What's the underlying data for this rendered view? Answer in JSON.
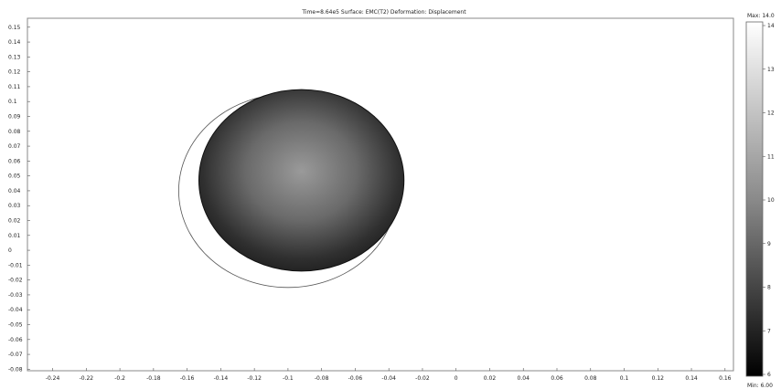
{
  "title": "Time=8.64e5   Surface: EMC(T2)   Deformation: Displacement",
  "chart_data": {
    "type": "heatmap",
    "xlim": [
      -0.255,
      0.165
    ],
    "ylim": [
      -0.081,
      0.156
    ],
    "x_ticks": [
      "-0.24",
      "-0.22",
      "-0.2",
      "-0.18",
      "-0.16",
      "-0.14",
      "-0.12",
      "-0.1",
      "-0.08",
      "-0.06",
      "-0.04",
      "-0.02",
      "0",
      "0.02",
      "0.04",
      "0.06",
      "0.08",
      "0.1",
      "0.12",
      "0.14",
      "0.16"
    ],
    "x_tick_values": [
      -0.24,
      -0.22,
      -0.2,
      -0.18,
      -0.16,
      -0.14,
      -0.12,
      -0.1,
      -0.08,
      -0.06,
      -0.04,
      -0.02,
      0,
      0.02,
      0.04,
      0.06,
      0.08,
      0.1,
      0.12,
      0.14,
      0.16
    ],
    "y_ticks": [
      "0.15",
      "0.14",
      "0.13",
      "0.12",
      "0.11",
      "0.1",
      "0.09",
      "0.08",
      "0.07",
      "0.06",
      "0.05",
      "0.04",
      "0.03",
      "0.02",
      "0.01",
      "0",
      "-0.01",
      "-0.02",
      "-0.03",
      "-0.04",
      "-0.05",
      "-0.06",
      "-0.07",
      "-0.08"
    ],
    "y_tick_values": [
      0.15,
      0.14,
      0.13,
      0.12,
      0.11,
      0.1,
      0.09,
      0.08,
      0.07,
      0.06,
      0.05,
      0.04,
      0.03,
      0.02,
      0.01,
      0,
      -0.01,
      -0.02,
      -0.03,
      -0.04,
      -0.05,
      -0.06,
      -0.07,
      -0.08
    ],
    "original_outline": {
      "cx": -0.1,
      "cy": 0.04,
      "rx": 0.065,
      "ry": 0.065
    },
    "deformed_disk": {
      "cx": -0.092,
      "cy": 0.047,
      "rx": 0.061,
      "ry": 0.061
    },
    "colorbar": {
      "max_label": "Max: 14.0",
      "min_label": "Min: 6.00",
      "min": 6,
      "max": 14,
      "ticks": [
        "14",
        "13",
        "12",
        "11",
        "10",
        "9",
        "8",
        "7",
        "6"
      ],
      "tick_values": [
        14,
        13,
        12,
        11,
        10,
        9,
        8,
        7,
        6
      ],
      "color_low": "#000000",
      "color_high": "#ffffff"
    },
    "grid": false
  }
}
